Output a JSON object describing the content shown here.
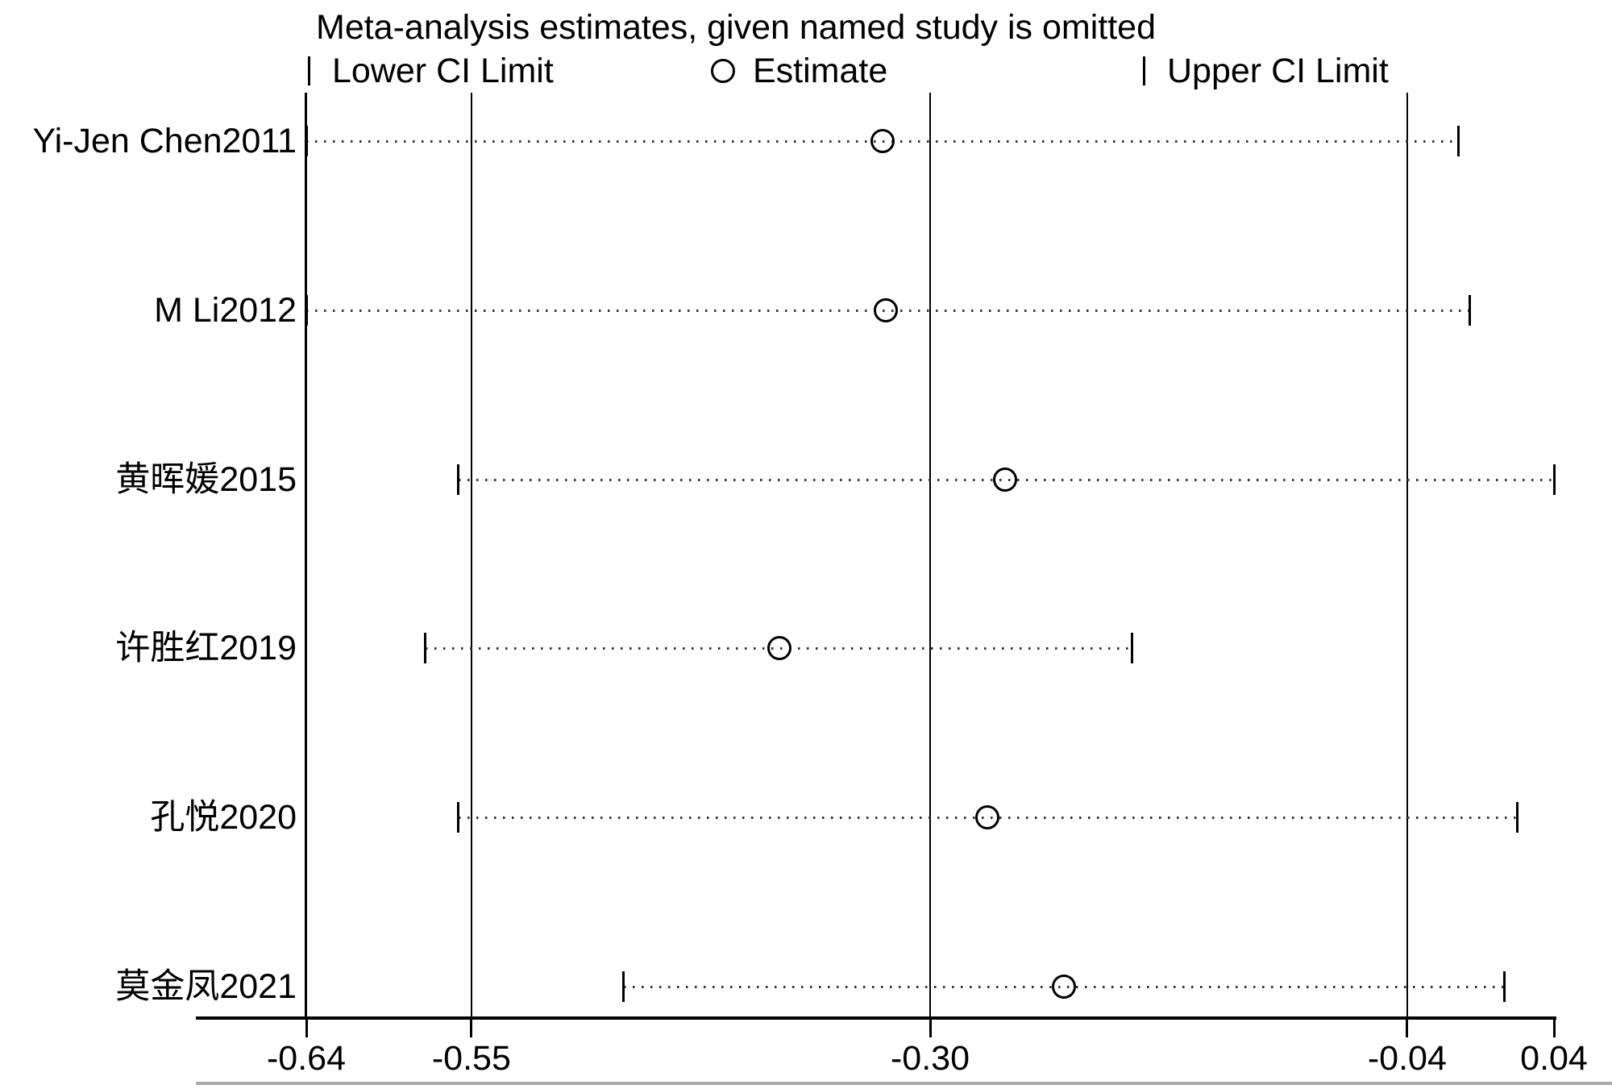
{
  "page": {
    "background": "#ffffff",
    "text_color": "#000000"
  },
  "chart_data": {
    "type": "scatter",
    "subtype": "meta-analysis-leave-one-out-sensitivity",
    "title": "Meta-analysis estimates, given named study is omitted",
    "legend": [
      {
        "symbol": "tick",
        "label": "Lower CI Limit"
      },
      {
        "symbol": "circle",
        "label": "Estimate"
      },
      {
        "symbol": "tick",
        "label": "Upper CI Limit"
      }
    ],
    "xlim": [
      -0.64,
      0.04
    ],
    "x_ticks": [
      {
        "value": -0.64,
        "label": "-0.64"
      },
      {
        "value": -0.55,
        "label": "-0.55"
      },
      {
        "value": -0.3,
        "label": "-0.30"
      },
      {
        "value": -0.04,
        "label": "-0.04"
      },
      {
        "value": 0.04,
        "label": "0.04"
      }
    ],
    "reference_lines": [
      -0.55,
      -0.3,
      -0.04
    ],
    "grid": false,
    "legend_position": "top",
    "studies": [
      {
        "label": "Yi-Jen Chen2011",
        "lower": -0.64,
        "estimate": -0.326,
        "upper": -0.012
      },
      {
        "label": "M Li2012",
        "lower": -0.64,
        "estimate": -0.324,
        "upper": -0.006
      },
      {
        "label": "黄晖媛2015",
        "lower": -0.557,
        "estimate": -0.259,
        "upper": 0.04
      },
      {
        "label": "许胜红2019",
        "lower": -0.575,
        "estimate": -0.382,
        "upper": -0.19
      },
      {
        "label": "孔悦2020",
        "lower": -0.557,
        "estimate": -0.269,
        "upper": 0.02
      },
      {
        "label": "莫金凤2021",
        "lower": -0.467,
        "estimate": -0.227,
        "upper": 0.013
      }
    ]
  }
}
